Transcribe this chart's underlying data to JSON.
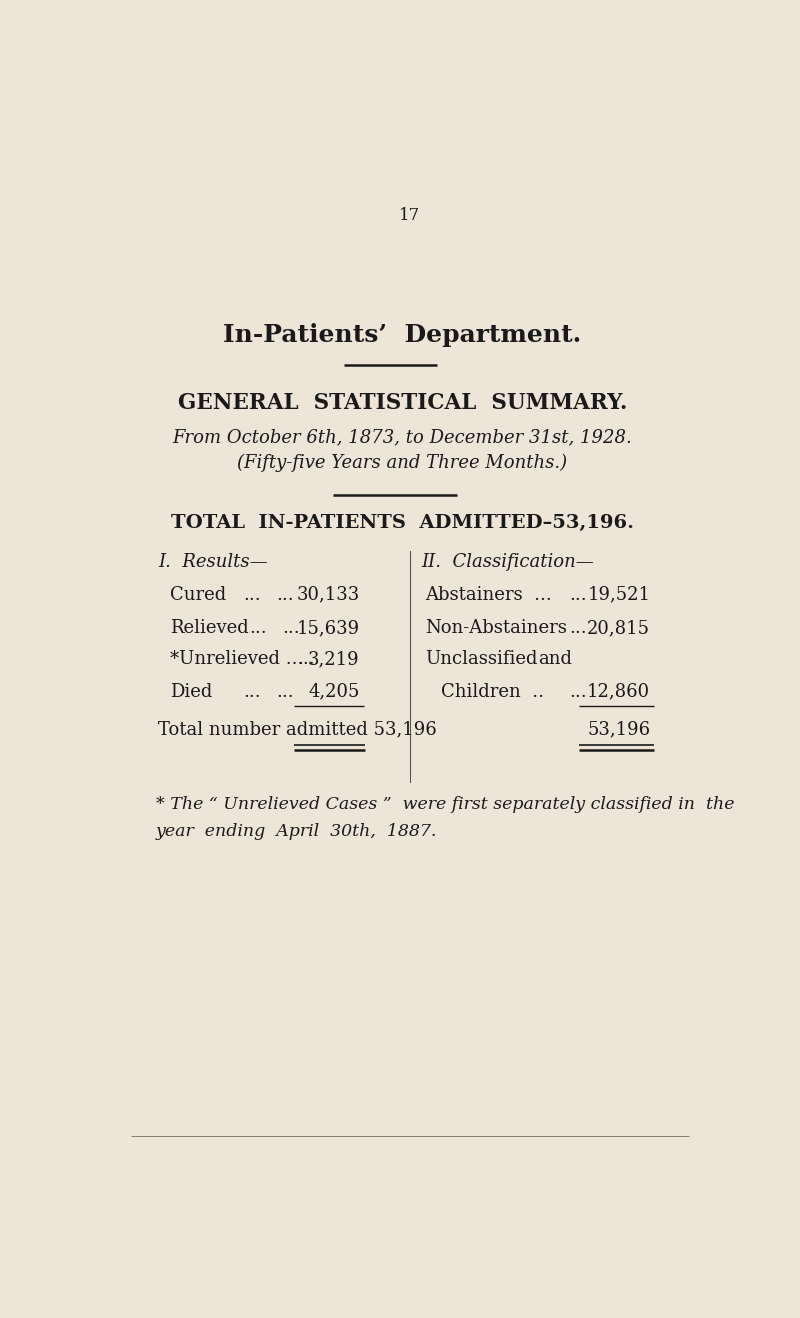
{
  "bg_color": "#ede6d8",
  "text_color": "#1a1a1a",
  "page_number": "17",
  "main_title": "In-Patients’  Department.",
  "section_title": "GENERAL  STATISTICAL  SUMMARY.",
  "date_line": "From October 6th, 1873, to December 31st, 1928.",
  "subtitle": "(Fifty-five Years and Three Months.)",
  "total_line": "TOTAL  IN-PATIENTS  ADMITTED–53,196.",
  "col1_header": "I.  Results—",
  "col2_header": "II.  Classification—",
  "col1_total_label": "Total number admitted 53,196",
  "col2_total": "53,196",
  "footnote_line1": "* The “ Unrelieved Cases ”  were first separately classified in  the",
  "footnote_line2": "year  ending  April  30th,  1887."
}
